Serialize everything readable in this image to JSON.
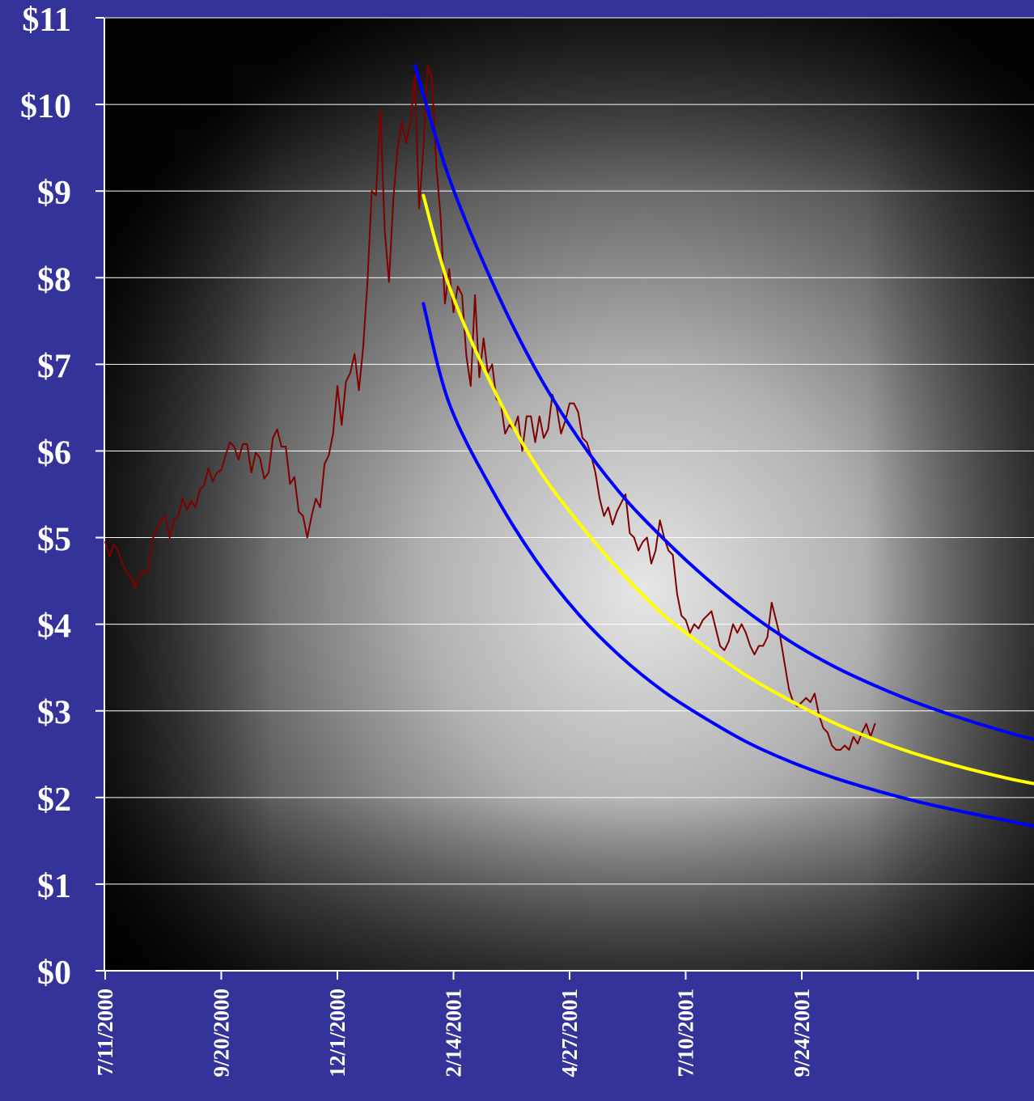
{
  "chart_data": {
    "type": "line",
    "title": "",
    "xlabel": "",
    "ylabel": "",
    "ylim": [
      0,
      11
    ],
    "y_ticks": [
      "$0",
      "$1",
      "$2",
      "$3",
      "$4",
      "$5",
      "$6",
      "$7",
      "$8",
      "$9",
      "$10",
      "$11"
    ],
    "x_tick_labels": [
      "7/11/2000",
      "9/20/2000",
      "12/1/2000",
      "2/14/2001",
      "4/27/2001",
      "7/10/2001",
      "9/24/2001",
      ""
    ],
    "gridlines": "horizontal",
    "legend": "none",
    "colors": {
      "background": "#333399",
      "price": "#800000",
      "band": "#0000ff",
      "trend": "#ffff00",
      "grid": "#ffffff"
    },
    "series": [
      {
        "role": "price",
        "points": [
          [
            0,
            4.95
          ],
          [
            1,
            4.78
          ],
          [
            2,
            4.92
          ],
          [
            3,
            4.85
          ],
          [
            4,
            4.7
          ],
          [
            5,
            4.6
          ],
          [
            6,
            4.55
          ],
          [
            7,
            4.42
          ],
          [
            8,
            4.58
          ],
          [
            9,
            4.62
          ],
          [
            10,
            4.6
          ],
          [
            11,
            4.98
          ],
          [
            12,
            5.1
          ],
          [
            13,
            5.2
          ],
          [
            14,
            5.25
          ],
          [
            15,
            5.0
          ],
          [
            16,
            5.2
          ],
          [
            17,
            5.25
          ],
          [
            18,
            5.45
          ],
          [
            19,
            5.32
          ],
          [
            20,
            5.42
          ],
          [
            21,
            5.35
          ],
          [
            22,
            5.55
          ],
          [
            23,
            5.6
          ],
          [
            24,
            5.8
          ],
          [
            25,
            5.65
          ],
          [
            26,
            5.75
          ],
          [
            27,
            5.78
          ],
          [
            28,
            5.95
          ],
          [
            29,
            6.1
          ],
          [
            30,
            6.05
          ],
          [
            31,
            5.9
          ],
          [
            32,
            6.08
          ],
          [
            33,
            6.08
          ],
          [
            34,
            5.75
          ],
          [
            35,
            5.98
          ],
          [
            36,
            5.92
          ],
          [
            37,
            5.68
          ],
          [
            38,
            5.75
          ],
          [
            39,
            6.15
          ],
          [
            40,
            6.25
          ],
          [
            41,
            6.05
          ],
          [
            42,
            6.05
          ],
          [
            43,
            5.62
          ],
          [
            44,
            5.7
          ],
          [
            45,
            5.3
          ],
          [
            46,
            5.25
          ],
          [
            47,
            5.0
          ],
          [
            48,
            5.25
          ],
          [
            49,
            5.45
          ],
          [
            50,
            5.35
          ],
          [
            51,
            5.85
          ],
          [
            52,
            5.95
          ],
          [
            53,
            6.2
          ],
          [
            54,
            6.75
          ],
          [
            55,
            6.3
          ],
          [
            56,
            6.8
          ],
          [
            57,
            6.9
          ],
          [
            58,
            7.12
          ],
          [
            59,
            6.7
          ],
          [
            60,
            7.2
          ],
          [
            61,
            7.95
          ],
          [
            62,
            9.0
          ],
          [
            63,
            8.95
          ],
          [
            64,
            9.95
          ],
          [
            65,
            8.55
          ],
          [
            66,
            7.95
          ],
          [
            67,
            8.9
          ],
          [
            68,
            9.5
          ],
          [
            69,
            9.8
          ],
          [
            70,
            9.55
          ],
          [
            71,
            9.8
          ],
          [
            72,
            10.35
          ],
          [
            73,
            8.8
          ],
          [
            74,
            9.5
          ],
          [
            75,
            10.45
          ],
          [
            76,
            10.3
          ],
          [
            77,
            9.3
          ],
          [
            78,
            8.7
          ],
          [
            79,
            7.7
          ],
          [
            80,
            8.1
          ],
          [
            81,
            7.6
          ],
          [
            82,
            7.9
          ],
          [
            83,
            7.8
          ],
          [
            84,
            7.1
          ],
          [
            85,
            6.75
          ],
          [
            86,
            7.8
          ],
          [
            87,
            6.85
          ],
          [
            88,
            7.3
          ],
          [
            89,
            6.9
          ],
          [
            90,
            7.0
          ],
          [
            91,
            6.6
          ],
          [
            92,
            6.55
          ],
          [
            93,
            6.2
          ],
          [
            94,
            6.3
          ],
          [
            95,
            6.25
          ],
          [
            96,
            6.4
          ],
          [
            97,
            6.0
          ],
          [
            98,
            6.4
          ],
          [
            99,
            6.4
          ],
          [
            100,
            6.1
          ],
          [
            101,
            6.4
          ],
          [
            102,
            6.15
          ],
          [
            103,
            6.25
          ],
          [
            104,
            6.65
          ],
          [
            105,
            6.5
          ],
          [
            106,
            6.2
          ],
          [
            107,
            6.35
          ],
          [
            108,
            6.55
          ],
          [
            109,
            6.55
          ],
          [
            110,
            6.45
          ],
          [
            111,
            6.15
          ],
          [
            112,
            6.1
          ],
          [
            113,
            5.95
          ],
          [
            114,
            5.75
          ],
          [
            115,
            5.45
          ],
          [
            116,
            5.25
          ],
          [
            117,
            5.35
          ],
          [
            118,
            5.15
          ],
          [
            119,
            5.3
          ],
          [
            120,
            5.4
          ],
          [
            121,
            5.5
          ],
          [
            122,
            5.05
          ],
          [
            123,
            5.0
          ],
          [
            124,
            4.85
          ],
          [
            125,
            4.95
          ],
          [
            126,
            5.0
          ],
          [
            127,
            4.7
          ],
          [
            128,
            4.85
          ],
          [
            129,
            5.2
          ],
          [
            130,
            5.0
          ],
          [
            131,
            4.85
          ],
          [
            132,
            4.8
          ],
          [
            133,
            4.35
          ],
          [
            134,
            4.1
          ],
          [
            135,
            4.05
          ],
          [
            136,
            3.9
          ],
          [
            137,
            4.0
          ],
          [
            138,
            3.95
          ],
          [
            139,
            4.05
          ],
          [
            140,
            4.1
          ],
          [
            141,
            4.15
          ],
          [
            142,
            3.95
          ],
          [
            143,
            3.75
          ],
          [
            144,
            3.7
          ],
          [
            145,
            3.8
          ],
          [
            146,
            4.0
          ],
          [
            147,
            3.9
          ],
          [
            148,
            4.0
          ],
          [
            149,
            3.9
          ],
          [
            150,
            3.75
          ],
          [
            151,
            3.65
          ],
          [
            152,
            3.75
          ],
          [
            153,
            3.75
          ],
          [
            154,
            3.85
          ],
          [
            155,
            4.25
          ],
          [
            156,
            4.05
          ],
          [
            157,
            3.85
          ],
          [
            158,
            3.55
          ],
          [
            159,
            3.25
          ],
          [
            160,
            3.1
          ],
          [
            161,
            3.05
          ],
          [
            162,
            3.1
          ],
          [
            163,
            3.15
          ],
          [
            164,
            3.1
          ],
          [
            165,
            3.2
          ],
          [
            166,
            2.95
          ],
          [
            167,
            2.8
          ],
          [
            168,
            2.75
          ],
          [
            169,
            2.6
          ],
          [
            170,
            2.55
          ],
          [
            171,
            2.55
          ],
          [
            172,
            2.6
          ],
          [
            173,
            2.55
          ],
          [
            174,
            2.7
          ],
          [
            175,
            2.62
          ],
          [
            176,
            2.75
          ],
          [
            177,
            2.85
          ],
          [
            178,
            2.7
          ],
          [
            179,
            2.85
          ]
        ]
      },
      {
        "role": "upper-band",
        "points": [
          [
            72,
            10.45
          ],
          [
            80,
            9.15
          ],
          [
            90,
            7.95
          ],
          [
            100,
            6.95
          ],
          [
            110,
            6.15
          ],
          [
            120,
            5.5
          ],
          [
            130,
            4.98
          ],
          [
            140,
            4.52
          ],
          [
            150,
            4.12
          ],
          [
            160,
            3.78
          ],
          [
            170,
            3.5
          ],
          [
            180,
            3.27
          ],
          [
            190,
            3.07
          ],
          [
            200,
            2.9
          ],
          [
            210,
            2.75
          ],
          [
            216,
            2.67
          ]
        ]
      },
      {
        "role": "trend",
        "points": [
          [
            74,
            8.95
          ],
          [
            80,
            7.9
          ],
          [
            90,
            6.75
          ],
          [
            100,
            5.85
          ],
          [
            110,
            5.18
          ],
          [
            120,
            4.6
          ],
          [
            130,
            4.1
          ],
          [
            140,
            3.72
          ],
          [
            150,
            3.38
          ],
          [
            160,
            3.1
          ],
          [
            170,
            2.85
          ],
          [
            180,
            2.65
          ],
          [
            190,
            2.48
          ],
          [
            200,
            2.34
          ],
          [
            210,
            2.22
          ],
          [
            216,
            2.16
          ]
        ]
      },
      {
        "role": "lower-band",
        "points": [
          [
            74,
            7.7
          ],
          [
            80,
            6.55
          ],
          [
            90,
            5.55
          ],
          [
            100,
            4.75
          ],
          [
            110,
            4.12
          ],
          [
            120,
            3.62
          ],
          [
            130,
            3.22
          ],
          [
            140,
            2.9
          ],
          [
            150,
            2.62
          ],
          [
            160,
            2.4
          ],
          [
            170,
            2.22
          ],
          [
            180,
            2.07
          ],
          [
            190,
            1.94
          ],
          [
            200,
            1.83
          ],
          [
            210,
            1.73
          ],
          [
            216,
            1.67
          ]
        ]
      }
    ]
  }
}
